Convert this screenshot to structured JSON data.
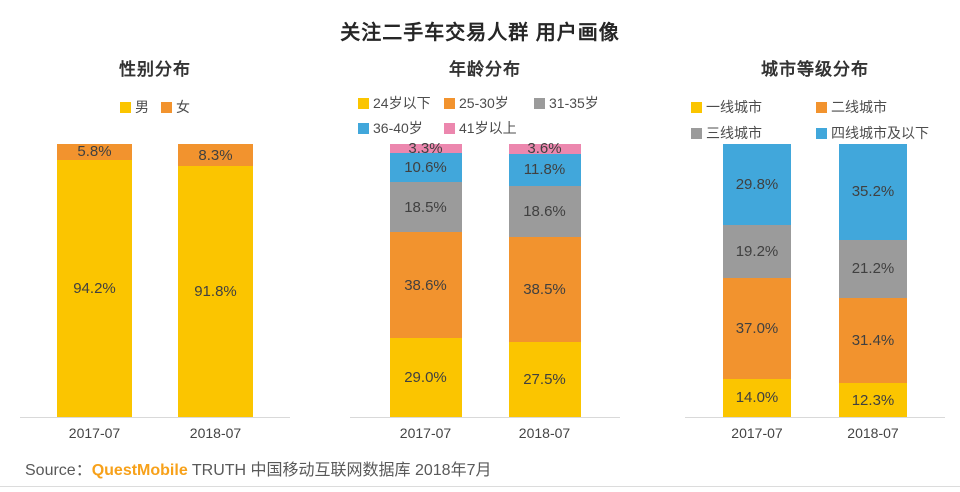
{
  "page": {
    "title": "关注二手车交易人群 用户画像",
    "source": {
      "label": "Source：",
      "brand": "QuestMobile",
      "rest": " TRUTH 中国移动互联网数据库 2018年7月"
    }
  },
  "colors": {
    "yellow": "#fbc500",
    "orange": "#f2932e",
    "gray": "#9b9b9b",
    "blue": "#41a7db",
    "pink": "#ec87ae",
    "axis_line": "#d9d9d9",
    "label_text": "#404040"
  },
  "chart_data": [
    {
      "id": "gender",
      "type": "bar",
      "stacked": true,
      "title": "性别分布",
      "categories": [
        "2017-07",
        "2018-07"
      ],
      "series": [
        {
          "name": "男",
          "color_key": "yellow",
          "values": [
            "94.2",
            "91.8"
          ]
        },
        {
          "name": "女",
          "color_key": "orange",
          "values": [
            "5.8",
            "8.3"
          ]
        }
      ],
      "unit": "%",
      "ylim": [
        0,
        100
      ],
      "grid": false,
      "legend_position": "top"
    },
    {
      "id": "age",
      "type": "bar",
      "stacked": true,
      "title": "年龄分布",
      "categories": [
        "2017-07",
        "2018-07"
      ],
      "series": [
        {
          "name": "24岁以下",
          "color_key": "yellow",
          "values": [
            "29.0",
            "27.5"
          ]
        },
        {
          "name": "25-30岁",
          "color_key": "orange",
          "values": [
            "38.6",
            "38.5"
          ]
        },
        {
          "name": "31-35岁",
          "color_key": "gray",
          "values": [
            "18.5",
            "18.6"
          ]
        },
        {
          "name": "36-40岁",
          "color_key": "blue",
          "values": [
            "10.6",
            "11.8"
          ]
        },
        {
          "name": "41岁以上",
          "color_key": "pink",
          "values": [
            "3.3",
            "3.6"
          ]
        }
      ],
      "unit": "%",
      "ylim": [
        0,
        100
      ],
      "grid": false,
      "legend_position": "top"
    },
    {
      "id": "city",
      "type": "bar",
      "stacked": true,
      "title": "城市等级分布",
      "categories": [
        "2017-07",
        "2018-07"
      ],
      "series": [
        {
          "name": "一线城市",
          "color_key": "yellow",
          "values": [
            "14.0",
            "12.3"
          ]
        },
        {
          "name": "二线城市",
          "color_key": "orange",
          "values": [
            "37.0",
            "31.4"
          ]
        },
        {
          "name": "三线城市",
          "color_key": "gray",
          "values": [
            "19.2",
            "21.2"
          ]
        },
        {
          "name": "四线城市及以下",
          "color_key": "blue",
          "values": [
            "29.8",
            "35.2"
          ]
        }
      ],
      "unit": "%",
      "ylim": [
        0,
        100
      ],
      "grid": false,
      "legend_position": "top"
    }
  ]
}
